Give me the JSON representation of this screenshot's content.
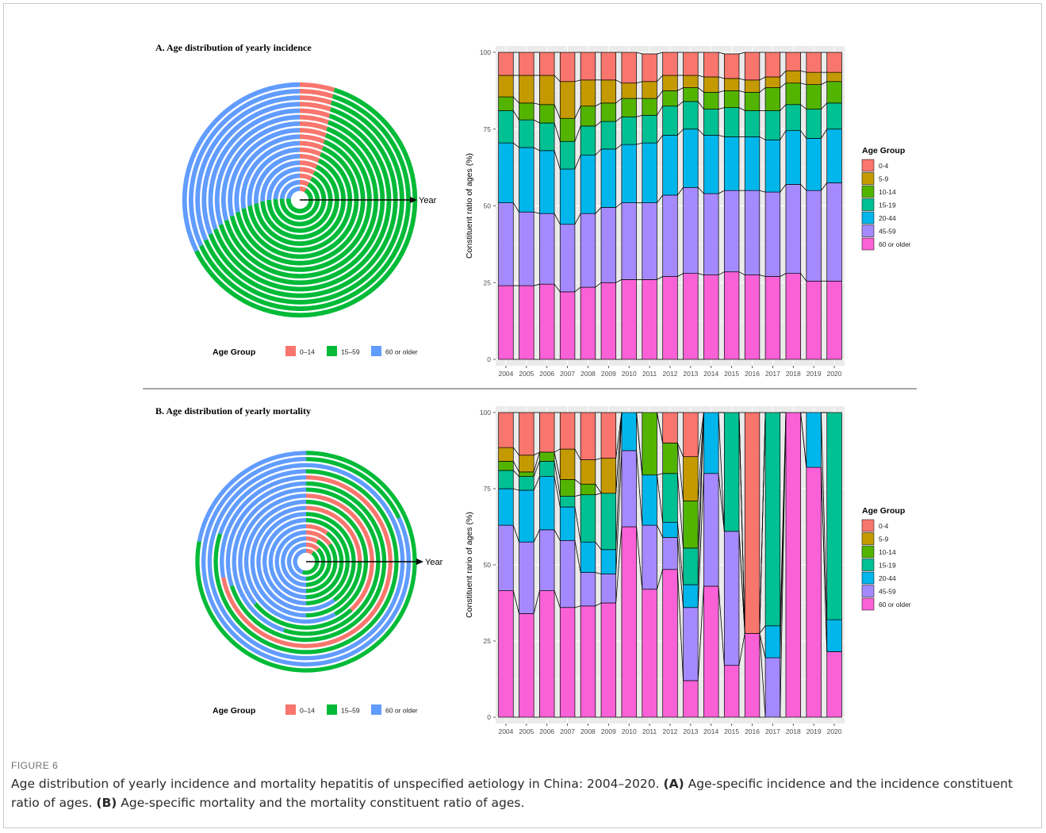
{
  "figure": {
    "label": "FIGURE 6",
    "caption_main": "Age distribution of yearly incidence and mortality hepatitis of unspecified aetiology in China: 2004–2020.",
    "caption_a_tag": "(A)",
    "caption_a_text": "Age-specific incidence and the incidence constituent ratio of ages.",
    "caption_b_tag": "(B)",
    "caption_b_text": "Age-specific mortality and the mortality constituent ratio of ages."
  },
  "panels": {
    "a_title": "A. Age distribution of yearly incidence",
    "b_title": "B. Age distribution of yearly mortality",
    "year_arrow_label": "Year",
    "radial_legend_title": "Age Group",
    "bar_legend_title": "Age Group",
    "ylabel": "Constituent ratio of ages (%)"
  },
  "colors": {
    "radial": {
      "0–14": "#F8766D",
      "15–59": "#00BA38",
      "60 or older": "#619CFF"
    },
    "stack": [
      "#F8766D",
      "#C49A00",
      "#53B400",
      "#00C094",
      "#00B6EB",
      "#A58AFF",
      "#FB61D7"
    ],
    "panel_bg": "#EBEBEB",
    "grid": "#FFFFFF"
  },
  "chart_data": [
    {
      "type": "radial-stacked",
      "title": "A. Age distribution of yearly incidence",
      "rings": "years 2004–2020 (inner to outer)",
      "series_names": [
        "0–14",
        "15–59",
        "60 or older"
      ],
      "values": [
        [
          8.4,
          68.3,
          23.3
        ],
        [
          8.0,
          68.0,
          24.0
        ],
        [
          7.9,
          67.6,
          24.5
        ],
        [
          7.7,
          67.3,
          25.0
        ],
        [
          7.4,
          67.0,
          25.6
        ],
        [
          7.1,
          66.6,
          26.3
        ],
        [
          6.8,
          66.4,
          26.8
        ],
        [
          6.6,
          66.0,
          27.4
        ],
        [
          6.3,
          65.6,
          28.1
        ],
        [
          6.1,
          65.2,
          28.7
        ],
        [
          5.8,
          64.9,
          29.3
        ],
        [
          5.6,
          64.6,
          29.8
        ],
        [
          5.4,
          64.3,
          30.3
        ],
        [
          5.2,
          64.0,
          30.8
        ],
        [
          5.0,
          63.6,
          31.4
        ],
        [
          4.9,
          63.2,
          31.9
        ],
        [
          4.8,
          62.9,
          32.3
        ]
      ]
    },
    {
      "type": "bar",
      "stacked": true,
      "title": "",
      "xlabel": "",
      "ylabel": "Constituent ratio of ages (%)",
      "ylim": [
        0,
        100
      ],
      "yticks": [
        0,
        25,
        50,
        75,
        100
      ],
      "legend": "right",
      "categories": [
        "2004",
        "2005",
        "2006",
        "2007",
        "2008",
        "2009",
        "2010",
        "2011",
        "2012",
        "2013",
        "2014",
        "2015",
        "2016",
        "2017",
        "2018",
        "2019",
        "2020"
      ],
      "series": [
        {
          "name": "60 or older",
          "values": [
            24,
            24,
            24.5,
            22,
            23.5,
            25,
            26,
            26,
            27,
            28,
            27.5,
            28.5,
            27.5,
            27,
            28,
            25.5,
            25.5
          ]
        },
        {
          "name": "45-59",
          "values": [
            27,
            24,
            23,
            22,
            24,
            24.5,
            25,
            25,
            26.5,
            28,
            26.5,
            26.5,
            27.5,
            27.5,
            29,
            29.5,
            32
          ]
        },
        {
          "name": "20-44",
          "values": [
            19.5,
            21,
            20.5,
            18,
            19,
            19,
            19,
            19.5,
            19.5,
            19,
            19,
            17.5,
            17.5,
            17,
            17.5,
            17,
            17.5
          ]
        },
        {
          "name": "15-19",
          "values": [
            10.5,
            9,
            9,
            9,
            9.5,
            9,
            9,
            9,
            9.5,
            9,
            8.5,
            9.5,
            8.5,
            9.5,
            8.5,
            9.5,
            8.5
          ]
        },
        {
          "name": "10-14",
          "values": [
            4.5,
            5.5,
            6,
            7.5,
            6.5,
            6,
            6,
            5.5,
            5,
            4.5,
            5.5,
            5.5,
            6,
            7.5,
            7,
            8,
            7
          ]
        },
        {
          "name": "5-9",
          "values": [
            7,
            9,
            9.5,
            12,
            8.5,
            7.5,
            5,
            5.5,
            5,
            4,
            5,
            4,
            4,
            3.5,
            4,
            4,
            3
          ]
        },
        {
          "name": "0-4",
          "values": [
            7.5,
            7.5,
            7.5,
            9.5,
            9,
            9,
            10,
            9,
            7.5,
            7.5,
            8,
            8,
            9,
            8,
            6,
            6.5,
            6.5
          ]
        }
      ]
    },
    {
      "type": "radial-stacked",
      "title": "B. Age distribution of yearly mortality",
      "rings": "years 2004–2020 (inner to outer)",
      "series_names": [
        "0–14",
        "15–59",
        "60 or older"
      ],
      "values": [
        [
          10,
          45,
          45
        ],
        [
          12,
          38,
          50
        ],
        [
          8,
          42,
          50
        ],
        [
          15,
          35,
          50
        ],
        [
          10,
          40,
          50
        ],
        [
          0,
          50,
          50
        ],
        [
          0,
          40,
          60
        ],
        [
          25,
          25,
          50
        ],
        [
          0,
          42,
          58
        ],
        [
          38,
          26,
          36
        ],
        [
          0,
          55,
          45
        ],
        [
          0,
          70,
          30
        ],
        [
          72,
          0,
          28
        ],
        [
          0,
          80,
          20
        ],
        [
          0,
          0,
          100
        ],
        [
          0,
          18,
          82
        ],
        [
          0,
          78,
          22
        ]
      ]
    },
    {
      "type": "bar",
      "stacked": true,
      "title": "",
      "xlabel": "",
      "ylabel": "Constituent rario of ages (%)",
      "ylim": [
        0,
        100
      ],
      "yticks": [
        0,
        25,
        50,
        75,
        100
      ],
      "legend": "right",
      "categories": [
        "2004",
        "2005",
        "2006",
        "2007",
        "2008",
        "2009",
        "2010",
        "2011",
        "2012",
        "2013",
        "2014",
        "2015",
        "2016",
        "2017",
        "2018",
        "2019",
        "2020"
      ],
      "series": [
        {
          "name": "60 or older",
          "values": [
            41.5,
            34,
            41.5,
            36,
            36.5,
            37.5,
            62.5,
            42,
            48.5,
            12,
            43,
            17,
            27.5,
            0,
            100,
            82,
            21.5
          ]
        },
        {
          "name": "45-59",
          "values": [
            21.5,
            23.5,
            20,
            22,
            11,
            9.5,
            25,
            21,
            10.5,
            24,
            37,
            44,
            0,
            19.5,
            0,
            0,
            0
          ]
        },
        {
          "name": "20-44",
          "values": [
            12,
            17,
            17.5,
            11,
            10,
            8,
            12.5,
            16.5,
            5,
            7.5,
            20,
            0,
            0,
            10.5,
            0,
            18,
            10.5
          ]
        },
        {
          "name": "15-19",
          "values": [
            6,
            4.5,
            5,
            3.5,
            15.5,
            18.5,
            0,
            0,
            16,
            12,
            0,
            39,
            0,
            70,
            0,
            0,
            68
          ]
        },
        {
          "name": "10-14",
          "values": [
            3,
            1.5,
            3,
            5.5,
            3.5,
            0,
            0,
            20.5,
            10,
            15.5,
            0,
            0,
            0,
            0,
            0,
            0,
            0
          ]
        },
        {
          "name": "5-9",
          "values": [
            4.5,
            5.5,
            0,
            10,
            8,
            11.5,
            0,
            0,
            0,
            14.5,
            0,
            0,
            0,
            0,
            0,
            0,
            0
          ]
        },
        {
          "name": "0-4",
          "values": [
            11.5,
            14,
            13,
            12,
            15.5,
            15,
            0,
            0,
            10,
            14.5,
            0,
            0,
            72.5,
            0,
            0,
            0,
            0
          ]
        }
      ]
    }
  ]
}
